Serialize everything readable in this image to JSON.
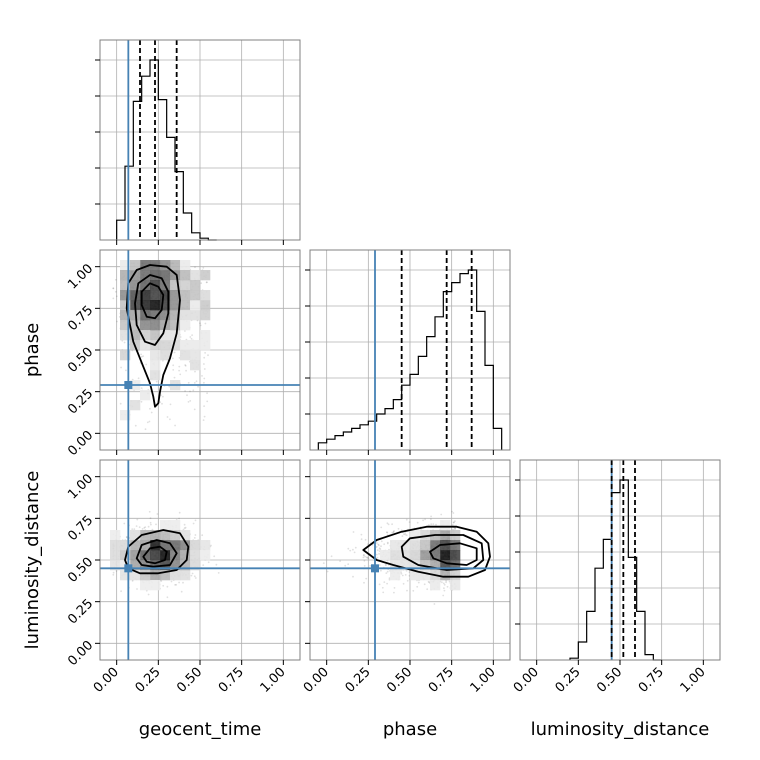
{
  "chart_data": {
    "type": "corner",
    "parameters": [
      "geocent_time",
      "phase",
      "luminosity_distance"
    ],
    "tick_labels": [
      "0.00",
      "0.25",
      "0.50",
      "0.75",
      "1.00"
    ],
    "range": [
      -0.1,
      1.1
    ],
    "truths": {
      "geocent_time": 0.07,
      "phase": 0.29,
      "luminosity_distance": 0.45
    },
    "colors": {
      "truth": "#4682b4",
      "hist": "#000000",
      "grid": "#b0b0b0"
    },
    "grid": true,
    "histograms": {
      "geocent_time": {
        "edges": [
          0.0,
          0.05,
          0.1,
          0.15,
          0.2,
          0.25,
          0.3,
          0.35,
          0.4,
          0.45,
          0.5,
          0.55,
          0.6
        ],
        "counts": [
          0.11,
          0.41,
          0.77,
          0.91,
          1.0,
          0.78,
          0.57,
          0.38,
          0.15,
          0.04,
          0.01,
          0.0
        ],
        "quantiles": [
          0.14,
          0.23,
          0.36
        ]
      },
      "phase": {
        "edges": [
          -0.05,
          0.0,
          0.05,
          0.1,
          0.15,
          0.2,
          0.25,
          0.3,
          0.35,
          0.4,
          0.45,
          0.5,
          0.55,
          0.6,
          0.65,
          0.7,
          0.75,
          0.8,
          0.85,
          0.9,
          0.95,
          1.0,
          1.05
        ],
        "counts": [
          0.04,
          0.06,
          0.08,
          0.1,
          0.12,
          0.14,
          0.16,
          0.2,
          0.23,
          0.28,
          0.36,
          0.42,
          0.52,
          0.63,
          0.74,
          0.88,
          0.93,
          0.98,
          1.0,
          0.77,
          0.47,
          0.12
        ],
        "quantiles": [
          0.45,
          0.72,
          0.87
        ]
      },
      "luminosity_distance": {
        "edges": [
          0.2,
          0.25,
          0.3,
          0.35,
          0.4,
          0.45,
          0.5,
          0.55,
          0.6,
          0.65,
          0.7,
          0.75
        ],
        "counts": [
          0.01,
          0.1,
          0.27,
          0.51,
          0.67,
          0.93,
          1.0,
          0.57,
          0.27,
          0.03,
          0.0
        ],
        "quantiles": [
          0.45,
          0.52,
          0.59
        ]
      }
    },
    "pairs": [
      {
        "x": "geocent_time",
        "y": "phase",
        "samples": {
          "count": 1400,
          "mode": "cloud",
          "box": [
            0.02,
            0.55,
            0.0,
            1.0
          ],
          "seed": 11
        },
        "density_peak": [
          0.21,
          0.82
        ],
        "contours": [
          [
            [
              0.2,
              1.01
            ],
            [
              0.3,
              1.0
            ],
            [
              0.36,
              0.95
            ],
            [
              0.38,
              0.8
            ],
            [
              0.36,
              0.6
            ],
            [
              0.32,
              0.45
            ],
            [
              0.28,
              0.35
            ],
            [
              0.26,
              0.25
            ],
            [
              0.25,
              0.18
            ],
            [
              0.23,
              0.16
            ],
            [
              0.22,
              0.22
            ],
            [
              0.2,
              0.3
            ],
            [
              0.16,
              0.4
            ],
            [
              0.1,
              0.55
            ],
            [
              0.06,
              0.75
            ],
            [
              0.07,
              0.9
            ],
            [
              0.12,
              0.98
            ],
            [
              0.2,
              1.01
            ]
          ],
          [
            [
              0.2,
              0.95
            ],
            [
              0.27,
              0.93
            ],
            [
              0.31,
              0.85
            ],
            [
              0.31,
              0.72
            ],
            [
              0.28,
              0.6
            ],
            [
              0.23,
              0.53
            ],
            [
              0.17,
              0.55
            ],
            [
              0.12,
              0.65
            ],
            [
              0.11,
              0.78
            ],
            [
              0.13,
              0.9
            ],
            [
              0.2,
              0.95
            ]
          ],
          [
            [
              0.2,
              0.9
            ],
            [
              0.25,
              0.88
            ],
            [
              0.28,
              0.83
            ],
            [
              0.27,
              0.74
            ],
            [
              0.23,
              0.69
            ],
            [
              0.18,
              0.7
            ],
            [
              0.15,
              0.77
            ],
            [
              0.15,
              0.85
            ],
            [
              0.2,
              0.9
            ]
          ]
        ]
      },
      {
        "x": "geocent_time",
        "y": "luminosity_distance",
        "samples": {
          "count": 1200,
          "mode": "gauss",
          "center": [
            0.25,
            0.53
          ],
          "sigma": [
            0.12,
            0.08
          ],
          "seed": 23
        },
        "density_peak": [
          0.22,
          0.52
        ],
        "contours": [
          [
            [
              0.05,
              0.5
            ],
            [
              0.07,
              0.58
            ],
            [
              0.15,
              0.65
            ],
            [
              0.28,
              0.68
            ],
            [
              0.38,
              0.66
            ],
            [
              0.43,
              0.58
            ],
            [
              0.42,
              0.5
            ],
            [
              0.36,
              0.44
            ],
            [
              0.25,
              0.42
            ],
            [
              0.14,
              0.42
            ],
            [
              0.07,
              0.45
            ],
            [
              0.05,
              0.5
            ]
          ],
          [
            [
              0.12,
              0.51
            ],
            [
              0.15,
              0.59
            ],
            [
              0.24,
              0.62
            ],
            [
              0.32,
              0.6
            ],
            [
              0.36,
              0.54
            ],
            [
              0.32,
              0.47
            ],
            [
              0.22,
              0.46
            ],
            [
              0.15,
              0.47
            ],
            [
              0.12,
              0.51
            ]
          ],
          [
            [
              0.16,
              0.52
            ],
            [
              0.2,
              0.57
            ],
            [
              0.26,
              0.58
            ],
            [
              0.3,
              0.55
            ],
            [
              0.29,
              0.5
            ],
            [
              0.23,
              0.48
            ],
            [
              0.18,
              0.49
            ],
            [
              0.16,
              0.52
            ]
          ]
        ]
      },
      {
        "x": "phase",
        "y": "luminosity_distance",
        "samples": {
          "count": 1600,
          "mode": "skew",
          "center": [
            0.78,
            0.53
          ],
          "sigma": [
            0.16,
            0.08
          ],
          "seed": 37
        },
        "density_peak": [
          0.83,
          0.53
        ],
        "contours": [
          [
            [
              0.22,
              0.56
            ],
            [
              0.3,
              0.62
            ],
            [
              0.45,
              0.67
            ],
            [
              0.6,
              0.7
            ],
            [
              0.78,
              0.7
            ],
            [
              0.9,
              0.67
            ],
            [
              0.97,
              0.6
            ],
            [
              0.98,
              0.52
            ],
            [
              0.95,
              0.44
            ],
            [
              0.85,
              0.4
            ],
            [
              0.7,
              0.4
            ],
            [
              0.55,
              0.43
            ],
            [
              0.4,
              0.47
            ],
            [
              0.3,
              0.5
            ],
            [
              0.22,
              0.56
            ]
          ],
          [
            [
              0.45,
              0.58
            ],
            [
              0.5,
              0.63
            ],
            [
              0.65,
              0.65
            ],
            [
              0.82,
              0.65
            ],
            [
              0.93,
              0.6
            ],
            [
              0.94,
              0.5
            ],
            [
              0.88,
              0.45
            ],
            [
              0.72,
              0.44
            ],
            [
              0.55,
              0.47
            ],
            [
              0.46,
              0.52
            ],
            [
              0.45,
              0.58
            ]
          ],
          [
            [
              0.62,
              0.55
            ],
            [
              0.68,
              0.59
            ],
            [
              0.8,
              0.6
            ],
            [
              0.9,
              0.57
            ],
            [
              0.9,
              0.5
            ],
            [
              0.84,
              0.47
            ],
            [
              0.72,
              0.48
            ],
            [
              0.64,
              0.51
            ],
            [
              0.62,
              0.55
            ]
          ]
        ]
      }
    ]
  }
}
